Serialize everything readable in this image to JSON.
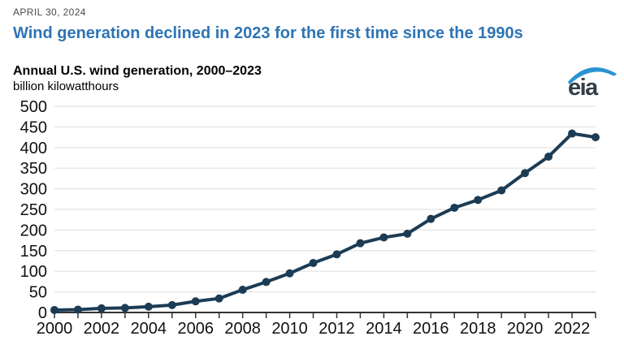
{
  "page": {
    "date": "APRIL 30, 2024",
    "title": "Wind generation declined in 2023 for the first time since the 1990s",
    "logo_text": "eia"
  },
  "chart": {
    "title": "Annual U.S. wind generation, 2000–2023",
    "unit_label": "billion kilowatthours"
  },
  "colors": {
    "title_blue": "#2e74b5",
    "line_navy": "#1c3c55",
    "grid_gray": "#e2e2e2",
    "axis_dark": "#333333",
    "date_gray": "#4a4a4a",
    "logo_arc_blue": "#2a93d1",
    "logo_text_gray": "#333f48"
  },
  "chart_data": {
    "type": "line",
    "title": "Annual U.S. wind generation, 2000–2023",
    "xlabel": "",
    "ylabel": "billion kilowatthours",
    "x": [
      2000,
      2001,
      2002,
      2003,
      2004,
      2005,
      2006,
      2007,
      2008,
      2009,
      2010,
      2011,
      2012,
      2013,
      2014,
      2015,
      2016,
      2017,
      2018,
      2019,
      2020,
      2021,
      2022,
      2023
    ],
    "values": [
      6,
      7,
      10,
      11,
      14,
      18,
      27,
      34,
      55,
      74,
      95,
      120,
      141,
      168,
      182,
      191,
      227,
      254,
      273,
      296,
      338,
      378,
      434,
      425
    ],
    "series_name": "U.S. wind generation",
    "ylim": [
      0,
      500
    ],
    "ytick_interval": 50,
    "xtick_labels": [
      2000,
      2002,
      2004,
      2006,
      2008,
      2010,
      2012,
      2014,
      2016,
      2018,
      2020,
      2022
    ],
    "grid": true,
    "legend": "none",
    "marker": "circle"
  }
}
